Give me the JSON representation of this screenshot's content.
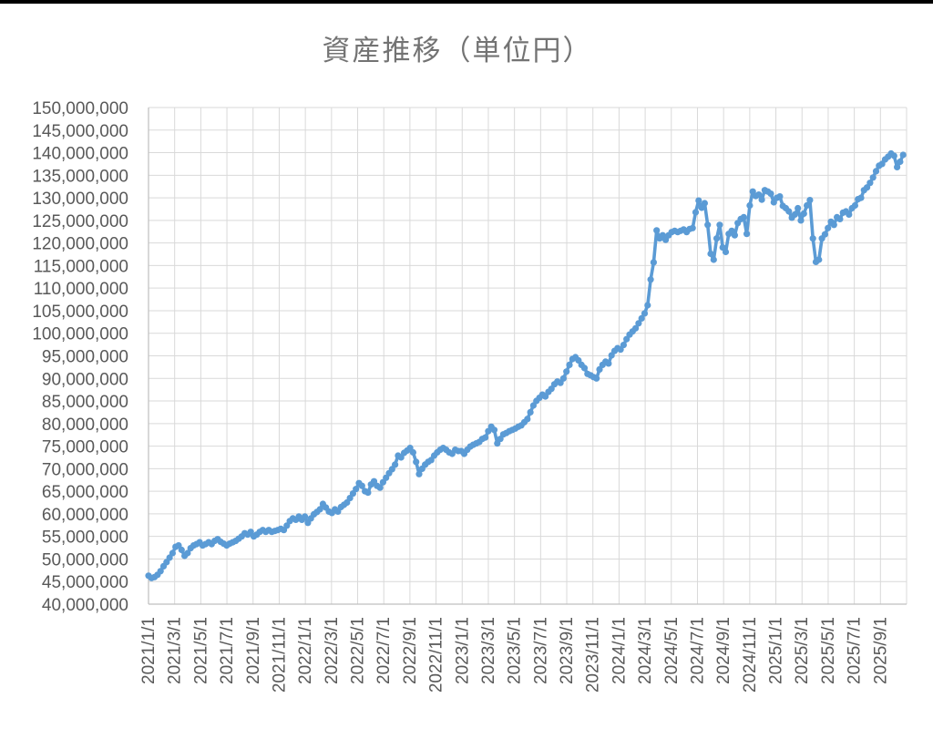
{
  "title": "資産推移（単位円）",
  "colors": {
    "series_blue": "#5B9BD5",
    "gridline": "#D9D9D9",
    "axis_line": "#BFBFBF",
    "tick_label": "#595959",
    "title_gray": "#737373",
    "background": "#FFFFFF"
  },
  "y_axis": {
    "min": 40000000,
    "max": 150000000,
    "step": 5000000,
    "labels": [
      "150,000,000",
      "145,000,000",
      "140,000,000",
      "135,000,000",
      "130,000,000",
      "125,000,000",
      "120,000,000",
      "115,000,000",
      "110,000,000",
      "105,000,000",
      "100,000,000",
      "95,000,000",
      "90,000,000",
      "85,000,000",
      "80,000,000",
      "75,000,000",
      "70,000,000",
      "65,000,000",
      "60,000,000",
      "55,000,000",
      "50,000,000",
      "45,000,000",
      "40,000,000"
    ]
  },
  "x_axis": {
    "labels": [
      "2021/1/1",
      "2021/3/1",
      "2021/5/1",
      "2021/7/1",
      "2021/9/1",
      "2021/11/1",
      "2022/1/1",
      "2022/3/1",
      "2022/5/1",
      "2022/7/1",
      "2022/9/1",
      "2022/11/1",
      "2023/1/1",
      "2023/3/1",
      "2023/5/1",
      "2023/7/1",
      "2023/9/1",
      "2023/11/1",
      "2024/1/1",
      "2024/3/1",
      "2024/5/1",
      "2024/7/1",
      "2024/9/1",
      "2024/11/1",
      "2025/1/1",
      "2025/3/1",
      "2025/5/1",
      "2025/7/1",
      "2025/9/1"
    ]
  },
  "chart_data": {
    "type": "line",
    "title": "資産推移（単位円）",
    "xlabel": "",
    "ylabel": "",
    "ylim": [
      40000000,
      150000000
    ],
    "y_gridline_step": 5000000,
    "x_start": "2021/1/1",
    "x_axis_end": "2025/11/1",
    "x_interval": "weekly",
    "x_tick_interval": "2 months",
    "grid": true,
    "legend": "none",
    "marker": "circle",
    "line_color": "#5B9BD5",
    "unit": "million JPY",
    "values_million_jpy": [
      46.3,
      45.8,
      46.0,
      46.5,
      47.3,
      48.4,
      49.3,
      50.3,
      51.3,
      52.7,
      53.0,
      52.0,
      50.7,
      51.3,
      52.4,
      53.0,
      53.3,
      53.7,
      53.0,
      53.3,
      53.7,
      53.3,
      54.0,
      54.4,
      53.8,
      53.4,
      53.0,
      53.4,
      53.7,
      54.0,
      54.5,
      55.0,
      55.7,
      55.4,
      56.0,
      55.0,
      55.4,
      56.0,
      56.4,
      56.0,
      56.4,
      56.0,
      56.2,
      56.4,
      56.7,
      56.4,
      57.4,
      58.4,
      59.0,
      58.7,
      59.4,
      58.7,
      59.4,
      58.0,
      59.0,
      59.9,
      60.4,
      61.0,
      62.2,
      61.4,
      60.5,
      60.2,
      61.0,
      60.5,
      61.5,
      62.0,
      62.5,
      63.5,
      64.5,
      65.5,
      66.8,
      66.2,
      65.0,
      64.7,
      66.5,
      67.2,
      66.2,
      65.8,
      67.0,
      68.0,
      69.0,
      69.9,
      70.9,
      72.9,
      72.5,
      73.5,
      74.0,
      74.6,
      73.6,
      71.5,
      68.8,
      70.0,
      70.9,
      71.5,
      71.9,
      72.9,
      73.6,
      74.2,
      74.6,
      74.2,
      73.6,
      73.3,
      74.2,
      73.9,
      73.9,
      73.3,
      74.2,
      74.9,
      75.3,
      75.6,
      75.9,
      76.6,
      76.9,
      78.3,
      79.3,
      78.6,
      75.6,
      76.6,
      77.6,
      77.9,
      78.3,
      78.6,
      78.9,
      79.3,
      79.6,
      80.3,
      81.0,
      82.5,
      84.0,
      85.0,
      85.7,
      86.4,
      86.0,
      87.0,
      87.7,
      88.7,
      89.3,
      89.0,
      90.0,
      91.5,
      93.0,
      94.3,
      94.7,
      94.0,
      93.0,
      92.3,
      91.0,
      90.7,
      90.3,
      90.0,
      92.0,
      93.0,
      93.7,
      93.3,
      95.1,
      96.1,
      96.7,
      96.4,
      97.4,
      98.7,
      99.7,
      100.4,
      101.1,
      102.2,
      103.3,
      104.4,
      106.2,
      111.9,
      115.7,
      122.8,
      121.0,
      121.7,
      120.7,
      121.7,
      122.4,
      122.7,
      122.4,
      122.7,
      123.0,
      122.4,
      123.1,
      123.3,
      126.8,
      129.4,
      127.8,
      128.8,
      124.0,
      117.6,
      116.3,
      121.0,
      124.0,
      119.0,
      118.0,
      122.0,
      122.7,
      121.7,
      124.4,
      125.3,
      125.7,
      122.0,
      128.3,
      131.4,
      130.4,
      130.7,
      129.6,
      131.7,
      131.4,
      130.9,
      129.0,
      130.0,
      130.3,
      128.2,
      127.7,
      127.0,
      125.6,
      126.3,
      127.7,
      125.0,
      126.5,
      128.3,
      129.5,
      121.0,
      115.8,
      116.3,
      121.0,
      121.9,
      123.3,
      124.7,
      124.0,
      125.7,
      125.3,
      126.7,
      127.0,
      126.3,
      127.7,
      128.3,
      129.7,
      130.0,
      131.7,
      132.3,
      133.3,
      134.5,
      135.9,
      137.1,
      137.5,
      138.5,
      139.1,
      139.8,
      139.3,
      136.8,
      138.0,
      139.5
    ]
  }
}
